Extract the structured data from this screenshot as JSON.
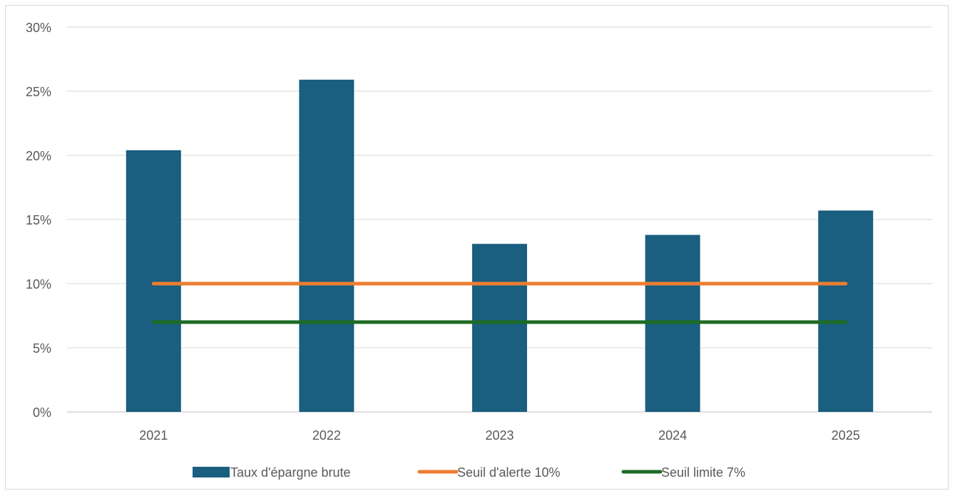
{
  "chart_data": {
    "type": "bar",
    "title": "",
    "xlabel": "",
    "ylabel": "",
    "categories": [
      "2021",
      "2022",
      "2023",
      "2024",
      "2025"
    ],
    "ylim": [
      0,
      30
    ],
    "yticks": [
      0,
      5,
      10,
      15,
      20,
      25,
      30
    ],
    "ytick_labels": [
      "0%",
      "5%",
      "10%",
      "15%",
      "20%",
      "25%",
      "30%"
    ],
    "grid": true,
    "legend_position": "bottom",
    "series": [
      {
        "name": "Taux d'épargne brute",
        "kind": "bar",
        "color": "#1a5e80",
        "values": [
          20.4,
          25.9,
          13.1,
          13.8,
          15.7
        ]
      },
      {
        "name": "Seuil d'alerte 10%",
        "kind": "line",
        "color": "#ed7d31",
        "values": [
          10,
          10,
          10,
          10,
          10
        ]
      },
      {
        "name": "Seuil limite 7%",
        "kind": "line",
        "color": "#1e6b24",
        "values": [
          7,
          7,
          7,
          7,
          7
        ]
      }
    ]
  }
}
